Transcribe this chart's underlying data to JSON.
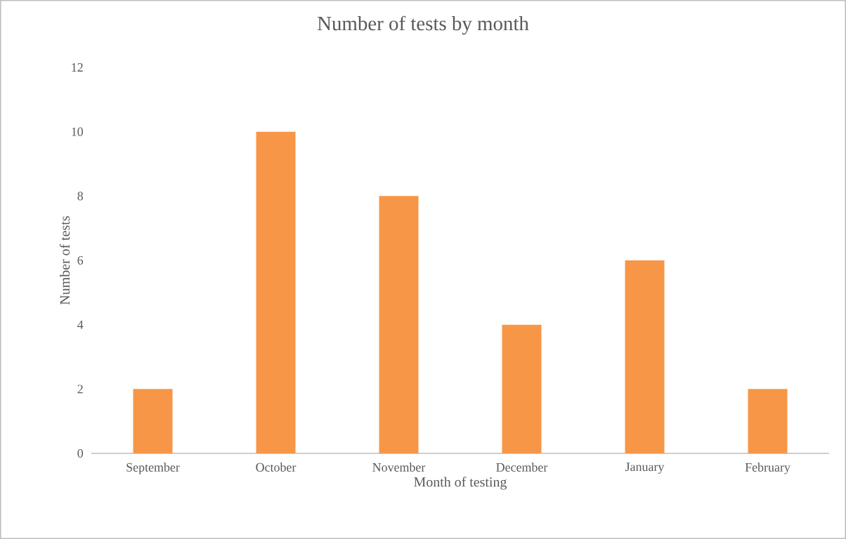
{
  "chart_data": {
    "type": "bar",
    "title": "Number of tests by month",
    "xlabel": "Month of testing",
    "ylabel": "Number of tests",
    "categories": [
      "September",
      "October",
      "November",
      "December",
      "January",
      "February"
    ],
    "values": [
      2,
      10,
      8,
      4,
      6,
      2
    ],
    "color": "#f79646",
    "ylim": [
      0,
      12
    ],
    "yticks": [
      0,
      2,
      4,
      6,
      8,
      10,
      12
    ],
    "grid": false
  }
}
